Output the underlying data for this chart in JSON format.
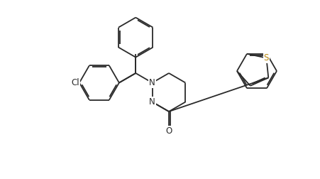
{
  "bg_color": "#ffffff",
  "line_color": "#2a2a2a",
  "atom_color_S": "#b8860b",
  "line_width": 1.3,
  "dbo": 0.018,
  "font_size": 8.5,
  "fig_w": 4.51,
  "fig_h": 2.52,
  "dpi": 100,
  "xlim": [
    0,
    4.51
  ],
  "ylim": [
    0,
    2.52
  ]
}
